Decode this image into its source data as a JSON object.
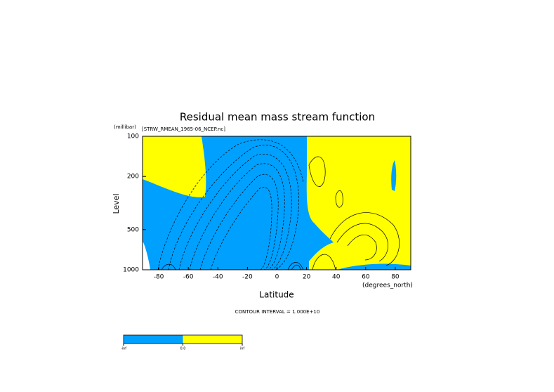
{
  "chart_data": {
    "type": "contour",
    "title": "Residual mean mass stream function",
    "subtitle": "[STRW_RMEAN_1965-06_NCEP.nc]",
    "xlabel": "Latitude",
    "xunit": "(degrees_north)",
    "ylabel": "Level",
    "yunit": "(millibar)",
    "xlim": [
      -90,
      90
    ],
    "xticks": [
      -80,
      -60,
      -40,
      -20,
      0,
      20,
      40,
      60,
      80
    ],
    "ylim": [
      100,
      1000
    ],
    "yticks": [
      100,
      200,
      500,
      1000
    ],
    "y_log": true,
    "y_reversed": true,
    "footnote": "CONTOUR INTERVAL = 1.000E+10",
    "colorbar": {
      "colors": [
        "#00a0ff",
        "#ffff00"
      ],
      "labels": [
        "-inf",
        "0.0",
        "inf"
      ]
    }
  }
}
